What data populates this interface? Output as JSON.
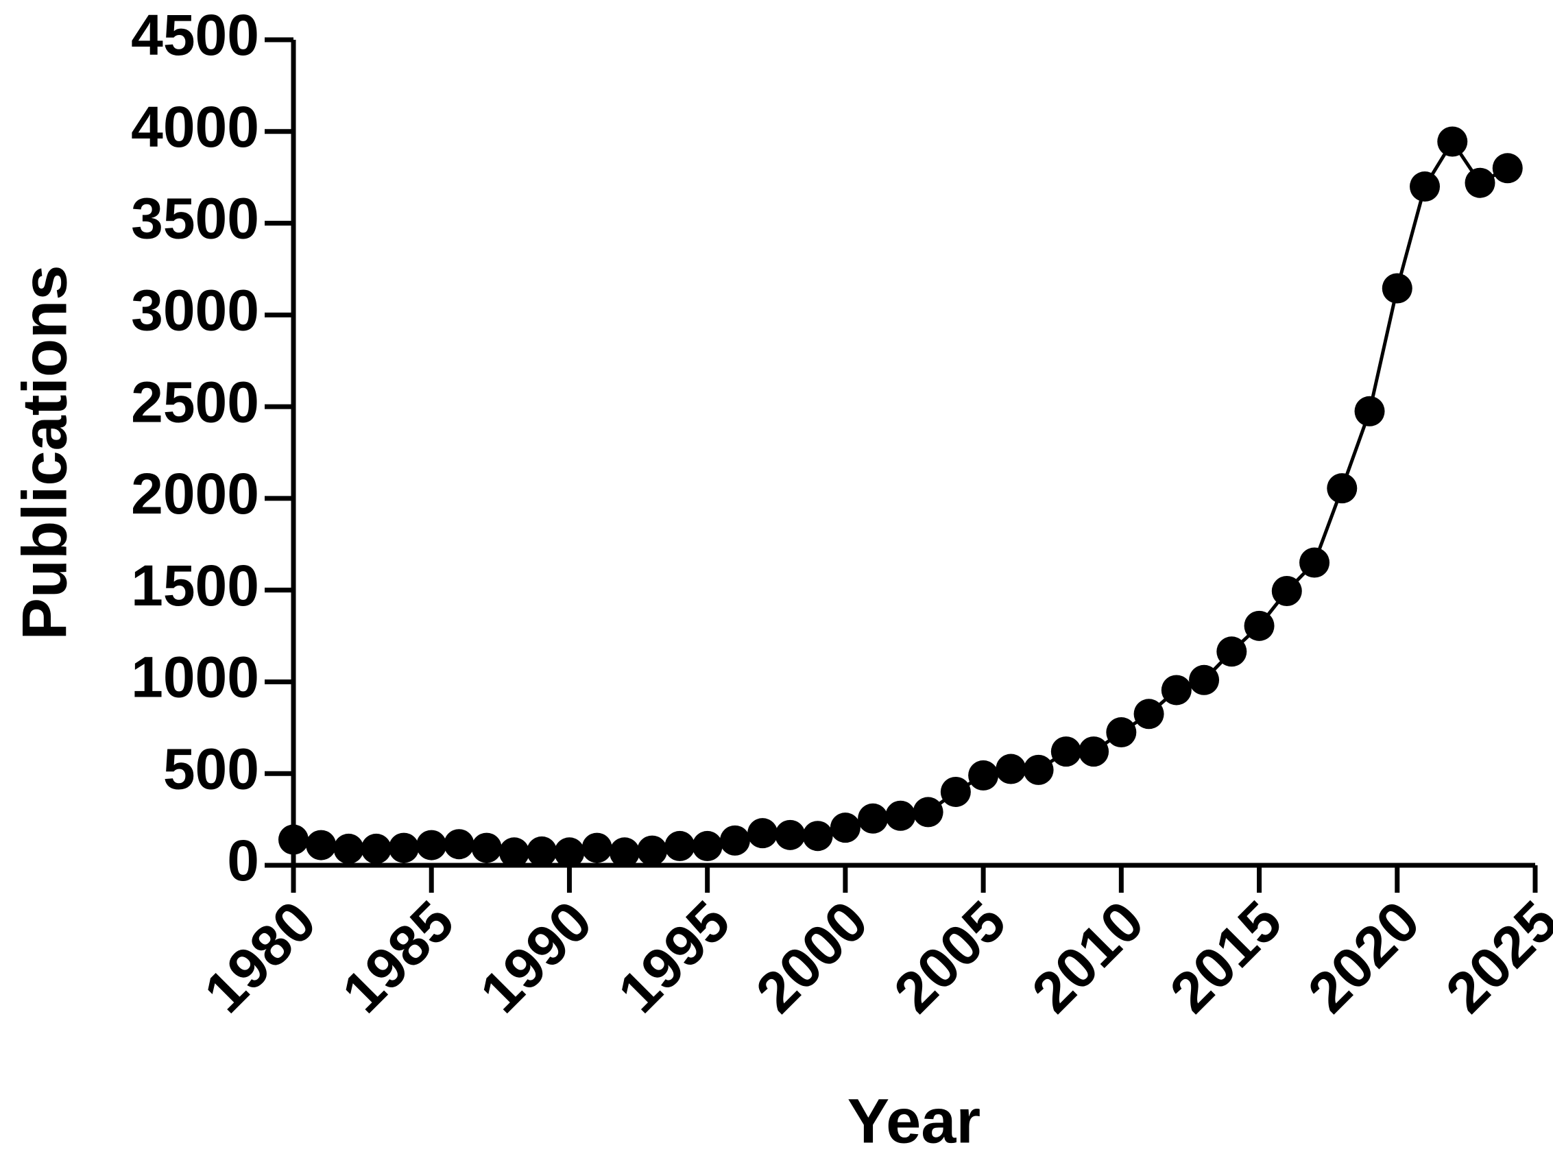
{
  "chart_data": {
    "type": "line",
    "x_label": "Year",
    "y_label": "Publications",
    "x": [
      1980,
      1981,
      1982,
      1983,
      1984,
      1985,
      1986,
      1987,
      1988,
      1989,
      1990,
      1991,
      1992,
      1993,
      1994,
      1995,
      1996,
      1997,
      1998,
      1999,
      2000,
      2001,
      2002,
      2003,
      2004,
      2005,
      2006,
      2007,
      2008,
      2009,
      2010,
      2011,
      2012,
      2013,
      2014,
      2015,
      2016,
      2017,
      2018,
      2019,
      2020,
      2021,
      2022,
      2023,
      2024
    ],
    "values": [
      140,
      110,
      90,
      90,
      95,
      110,
      115,
      95,
      70,
      75,
      70,
      95,
      70,
      80,
      105,
      105,
      135,
      175,
      165,
      160,
      205,
      255,
      270,
      290,
      400,
      490,
      525,
      520,
      620,
      620,
      725,
      825,
      955,
      1010,
      1165,
      1305,
      1495,
      1650,
      2055,
      2475,
      3145,
      3700,
      3945,
      3720,
      3800
    ],
    "color": "#000000",
    "xlim": [
      1980,
      2025
    ],
    "xticks": [
      1980,
      1985,
      1990,
      1995,
      2000,
      2005,
      2010,
      2015,
      2020,
      2025
    ],
    "ylim": [
      0,
      4500
    ],
    "yticks": [
      0,
      500,
      1000,
      1500,
      2000,
      2500,
      3000,
      3500,
      4000,
      4500
    ],
    "grid": false
  }
}
